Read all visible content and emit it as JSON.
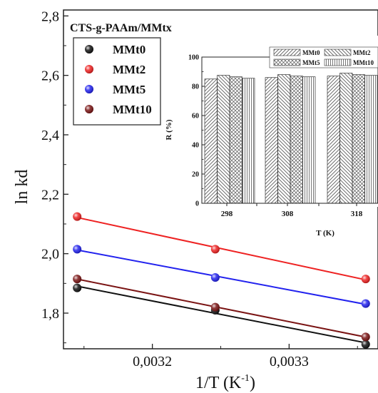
{
  "chart_data": [
    {
      "type": "scatter",
      "title": "CTS-g-PAAm/MMtx",
      "xlabel": "1/T (K",
      "xlabel_superscript": "-1",
      "xlabel_close": ")",
      "ylabel": "ln kd",
      "xlim": [
        0.003135,
        0.003365
      ],
      "ylim": [
        1.68,
        2.82
      ],
      "x_ticks": [
        {
          "value": 0.0032,
          "label": "0,0032"
        },
        {
          "value": 0.0033,
          "label": "0,0033"
        }
      ],
      "y_ticks": [
        {
          "value": 1.8,
          "label": "1,8"
        },
        {
          "value": 2.0,
          "label": "2,0"
        },
        {
          "value": 2.2,
          "label": "2,2"
        },
        {
          "value": 2.4,
          "label": "2,4"
        },
        {
          "value": 2.6,
          "label": "2,6"
        },
        {
          "value": 2.8,
          "label": "2,8"
        }
      ],
      "legend_position": "top-left",
      "fit_lines": true,
      "series": [
        {
          "name": "MMt0",
          "color": "#111111",
          "points": [
            {
              "x": 0.003145,
              "y": 1.885
            },
            {
              "x": 0.003246,
              "y": 1.81
            },
            {
              "x": 0.003356,
              "y": 1.695
            }
          ]
        },
        {
          "name": "MMt2",
          "color": "#ee2222",
          "points": [
            {
              "x": 0.003145,
              "y": 2.125
            },
            {
              "x": 0.003246,
              "y": 2.015
            },
            {
              "x": 0.003356,
              "y": 1.915
            }
          ]
        },
        {
          "name": "MMt5",
          "color": "#2222ee",
          "points": [
            {
              "x": 0.003145,
              "y": 2.015
            },
            {
              "x": 0.003246,
              "y": 1.92
            },
            {
              "x": 0.003356,
              "y": 1.832
            }
          ]
        },
        {
          "name": "MMt10",
          "color": "#7a1414",
          "points": [
            {
              "x": 0.003145,
              "y": 1.915
            },
            {
              "x": 0.003246,
              "y": 1.82
            },
            {
              "x": 0.003356,
              "y": 1.72
            }
          ]
        }
      ]
    },
    {
      "type": "bar",
      "xlabel": "T (K)",
      "ylabel": "R (%)",
      "ylim": [
        0,
        100
      ],
      "y_ticks": [
        0,
        20,
        40,
        60,
        80,
        100
      ],
      "categories": [
        "298",
        "308",
        "318"
      ],
      "legend_position": "top-right",
      "series": [
        {
          "name": "MMt0",
          "pattern": "diagonal-up",
          "values": [
            85,
            86,
            87
          ]
        },
        {
          "name": "MMt2",
          "pattern": "diagonal-down",
          "values": [
            87.5,
            88,
            89
          ]
        },
        {
          "name": "MMt5",
          "pattern": "cross-hatch",
          "values": [
            86.5,
            87,
            88
          ]
        },
        {
          "name": "MMt10",
          "pattern": "vertical",
          "values": [
            85.5,
            86.5,
            87.5
          ]
        }
      ]
    }
  ]
}
